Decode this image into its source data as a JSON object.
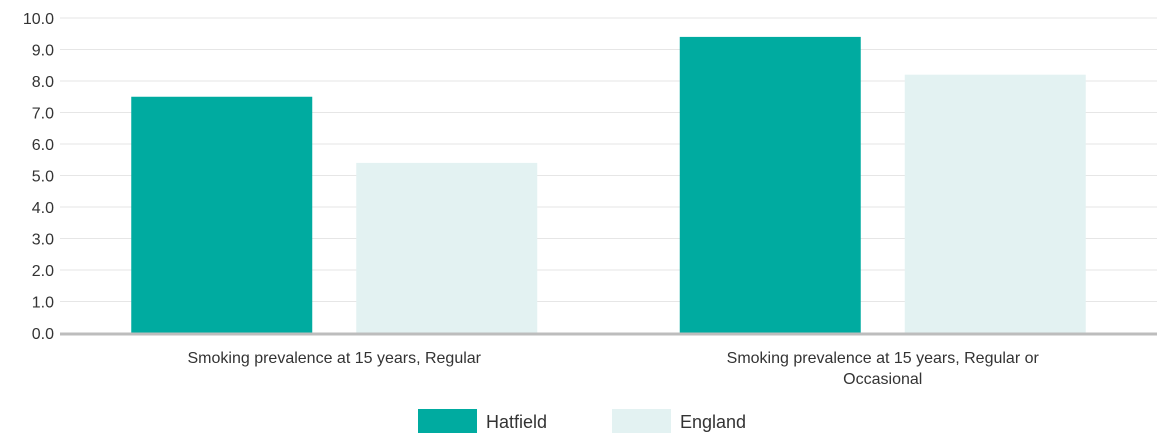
{
  "chart_data": {
    "type": "bar",
    "title": "",
    "xlabel": "",
    "ylabel": "",
    "ylim": [
      0,
      10
    ],
    "y_ticks": [
      "0.0",
      "1.0",
      "2.0",
      "3.0",
      "4.0",
      "5.0",
      "6.0",
      "7.0",
      "8.0",
      "9.0",
      "10.0"
    ],
    "categories": [
      [
        "Smoking prevalence at 15 years, Regular"
      ],
      [
        "Smoking prevalence at 15 years, Regular or",
        "Occasional"
      ]
    ],
    "series": [
      {
        "name": "Hatfield",
        "color": "#00aba0",
        "values": [
          7.5,
          9.4
        ]
      },
      {
        "name": "England",
        "color": "#e3f2f2",
        "values": [
          5.4,
          8.2
        ]
      }
    ],
    "grid": true,
    "legend_position": "bottom-center"
  }
}
